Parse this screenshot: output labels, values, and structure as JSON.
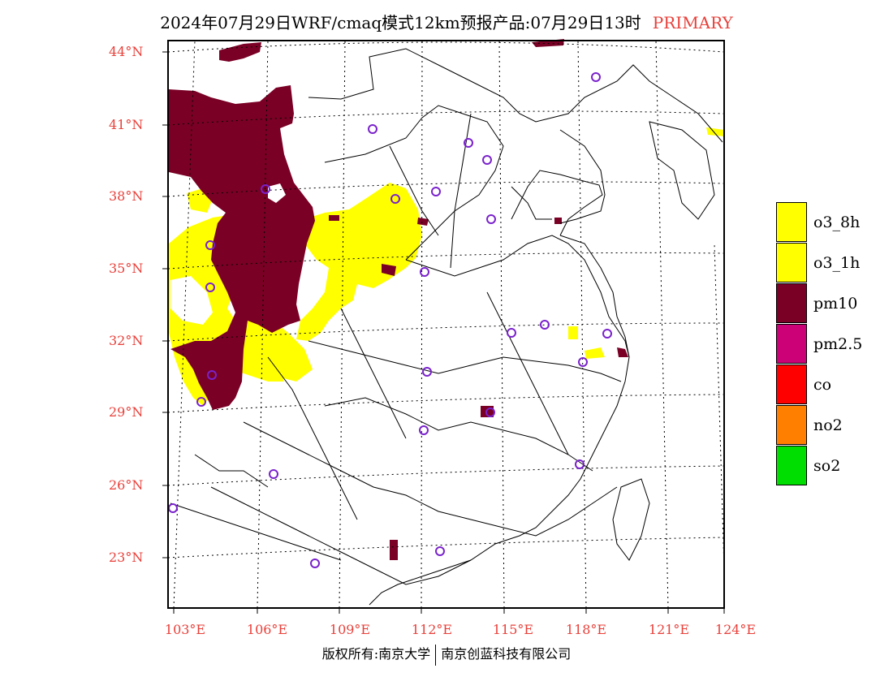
{
  "header": {
    "title": "2024年07月29日WRF/cmaq模式12km预报产品:07月29日13时",
    "tag": "PRIMARY"
  },
  "map": {
    "lat_labels": [
      "44°N",
      "41°N",
      "38°N",
      "35°N",
      "32°N",
      "29°N",
      "26°N",
      "23°N"
    ],
    "lon_labels": [
      "103°E",
      "106°E",
      "109°E",
      "112°E",
      "115°E",
      "118°E",
      "121°E",
      "124°E"
    ],
    "label_color": "#e8403a",
    "pollutant_colors": {
      "o3": "#ffff00",
      "pm10": "#7a0026",
      "pm2.5": "#cc0077",
      "co": "#ff0000",
      "no2": "#ff7f00",
      "so2": "#00dd00"
    },
    "station_marker_color": "#7a22cc"
  },
  "legend": {
    "items": [
      {
        "label": "o3_8h",
        "color": "#ffff00"
      },
      {
        "label": "o3_1h",
        "color": "#ffff00"
      },
      {
        "label": "pm10",
        "color": "#7a0026"
      },
      {
        "label": "pm2.5",
        "color": "#cc0077"
      },
      {
        "label": "co",
        "color": "#ff0000"
      },
      {
        "label": "no2",
        "color": "#ff7f00"
      },
      {
        "label": "so2",
        "color": "#00dd00"
      }
    ]
  },
  "footer": {
    "left": "版权所有:南京大学",
    "right": "南京创蓝科技有限公司"
  }
}
